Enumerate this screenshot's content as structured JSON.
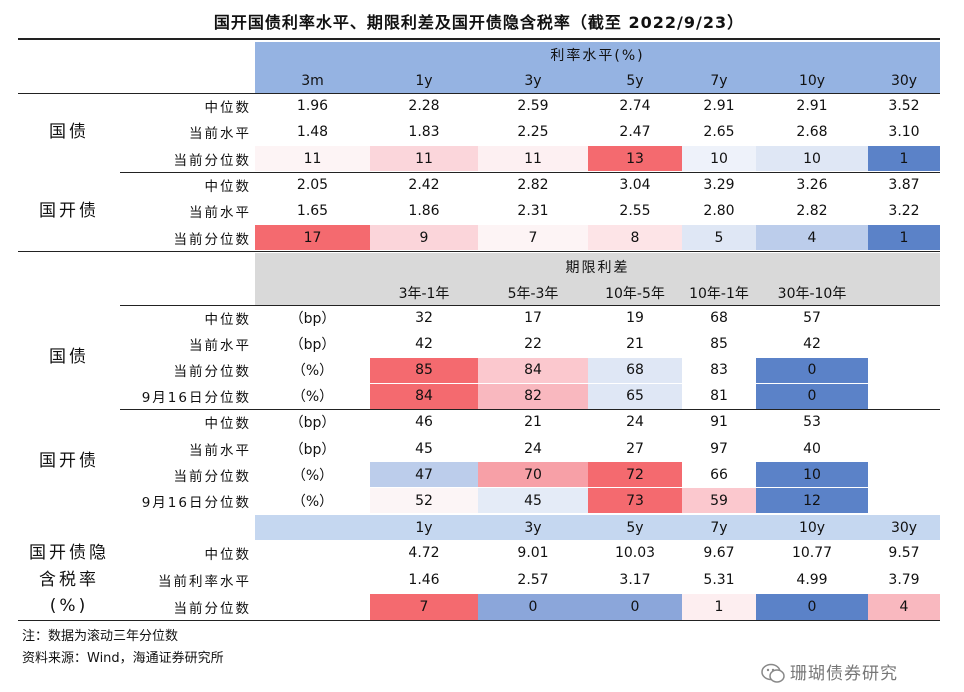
{
  "title": "国开国债利率水平、期限利差及国开债隐含税率（截至 2022/9/23）",
  "rate_section": {
    "header": "利率水平(%)",
    "columns": [
      "3m",
      "1y",
      "3y",
      "5y",
      "7y",
      "10y",
      "30y"
    ],
    "groups": [
      {
        "label": "国债",
        "rows": [
          {
            "label": "中位数",
            "cells": [
              "1.96",
              "2.28",
              "2.59",
              "2.74",
              "2.91",
              "2.91",
              "3.52"
            ]
          },
          {
            "label": "当前水平",
            "cells": [
              "1.48",
              "1.83",
              "2.25",
              "2.47",
              "2.65",
              "2.68",
              "3.10"
            ]
          },
          {
            "label": "当前分位数",
            "cells": [
              "11",
              "11",
              "11",
              "13",
              "10",
              "10",
              "1"
            ],
            "fills": [
              "#fdf4f5",
              "#fbd6db",
              "#fdf0f2",
              "#f46a6f",
              "#eef2fa",
              "#dfe7f5",
              "#5b82c8"
            ]
          }
        ]
      },
      {
        "label": "国开债",
        "rows": [
          {
            "label": "中位数",
            "cells": [
              "2.05",
              "2.42",
              "2.82",
              "3.04",
              "3.29",
              "3.26",
              "3.87"
            ]
          },
          {
            "label": "当前水平",
            "cells": [
              "1.65",
              "1.86",
              "2.31",
              "2.55",
              "2.80",
              "2.82",
              "3.22"
            ]
          },
          {
            "label": "当前分位数",
            "cells": [
              "17",
              "9",
              "7",
              "8",
              "5",
              "4",
              "1"
            ],
            "fills": [
              "#f46a6f",
              "#fbd5da",
              "#fdf4f5",
              "#fde4e7",
              "#dfe7f5",
              "#bccdeb",
              "#5b82c8"
            ]
          }
        ]
      }
    ]
  },
  "spread_section": {
    "header": "期限利差",
    "columns": [
      "3年-1年",
      "5年-3年",
      "10年-5年",
      "10年-1年",
      "30年-10年"
    ],
    "groups": [
      {
        "label": "国债",
        "rows": [
          {
            "label": "中位数",
            "unit": "（bp）",
            "cells": [
              "32",
              "17",
              "19",
              "68",
              "57"
            ]
          },
          {
            "label": "当前水平",
            "unit": "（bp）",
            "cells": [
              "42",
              "22",
              "21",
              "85",
              "42"
            ]
          },
          {
            "label": "当前分位数",
            "unit": "（%）",
            "cells": [
              "85",
              "84",
              "68",
              "83",
              "0"
            ],
            "fills": [
              "#f46a6f",
              "#fbc8ce",
              "#dfe7f5",
              "#ffffff",
              "#5b82c8"
            ]
          },
          {
            "label": "9月16日分位数",
            "unit": "（%）",
            "cells": [
              "84",
              "82",
              "65",
              "81",
              "0"
            ],
            "fills": [
              "#f46a6f",
              "#f9b8bf",
              "#dfe7f5",
              "#ffffff",
              "#5b82c8"
            ]
          }
        ]
      },
      {
        "label": "国开债",
        "rows": [
          {
            "label": "中位数",
            "unit": "（bp）",
            "cells": [
              "46",
              "21",
              "24",
              "91",
              "53"
            ]
          },
          {
            "label": "当前水平",
            "unit": "（bp）",
            "cells": [
              "45",
              "24",
              "27",
              "97",
              "40"
            ]
          },
          {
            "label": "当前分位数",
            "unit": "（%）",
            "cells": [
              "47",
              "70",
              "72",
              "66",
              "10"
            ],
            "fills": [
              "#bccdeb",
              "#f7a0a7",
              "#f46a6f",
              "#ffffff",
              "#5b82c8"
            ]
          },
          {
            "label": "9月16日分位数",
            "unit": "（%）",
            "cells": [
              "52",
              "45",
              "73",
              "59",
              "12"
            ],
            "fills": [
              "#fcf5f6",
              "#e4ebf7",
              "#f46a6f",
              "#fbc8ce",
              "#5b82c8"
            ]
          }
        ]
      }
    ]
  },
  "tax_section": {
    "columns": [
      "1y",
      "3y",
      "5y",
      "7y",
      "10y",
      "30y"
    ],
    "label": [
      "国开债隐",
      "含税率",
      "(%)"
    ],
    "rows": [
      {
        "label": "中位数",
        "cells": [
          "4.72",
          "9.01",
          "10.03",
          "9.67",
          "10.77",
          "9.57"
        ]
      },
      {
        "label": "当前利率水平",
        "cells": [
          "1.46",
          "2.57",
          "3.17",
          "5.31",
          "4.99",
          "3.79"
        ]
      },
      {
        "label": "当前分位数",
        "cells": [
          "7",
          "0",
          "0",
          "1",
          "0",
          "4"
        ],
        "fills": [
          "#f46a6f",
          "#8ba6da",
          "#8ba6da",
          "#fdeef0",
          "#5b82c8",
          "#f9b8bf"
        ]
      }
    ]
  },
  "notes": [
    "注：数据为滚动三年分位数",
    "资料来源：Wind，海通证券研究所"
  ],
  "watermark": "珊瑚债券研究"
}
